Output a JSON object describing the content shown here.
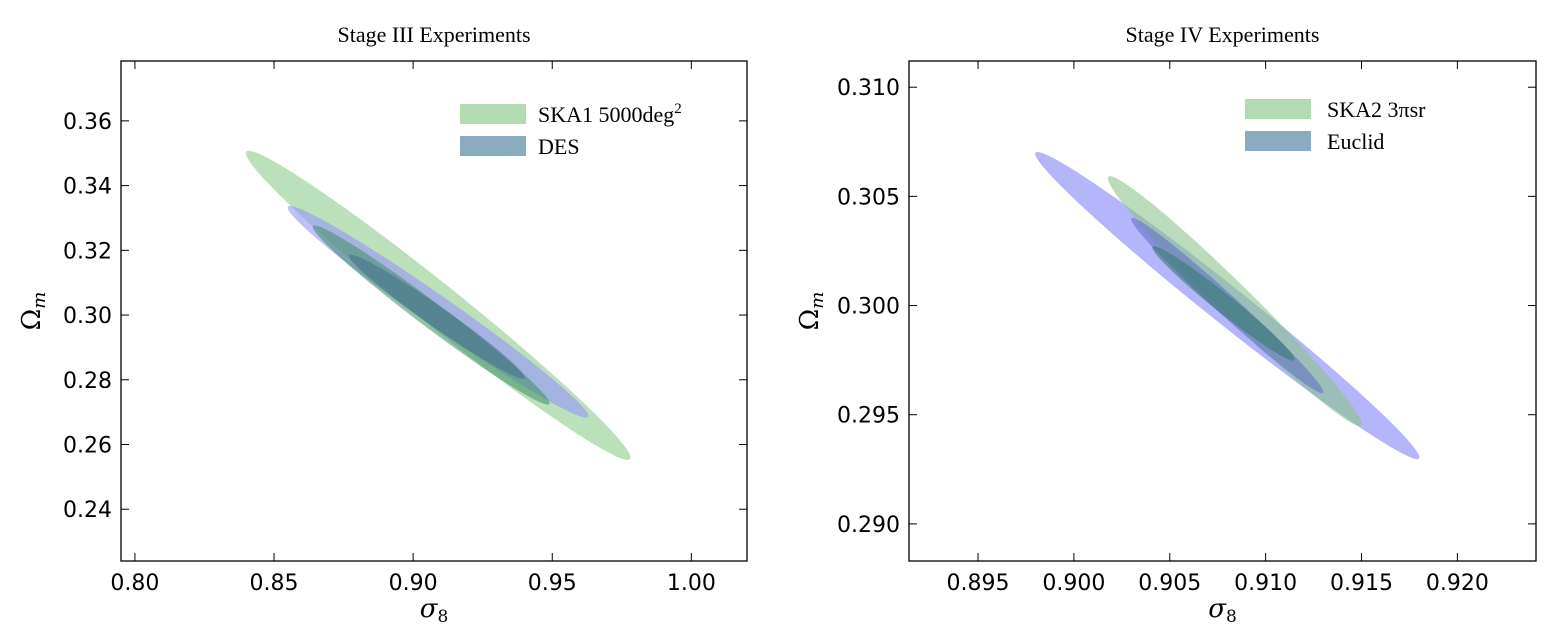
{
  "chart_data": [
    {
      "type": "contour",
      "title": "Stage III Experiments",
      "xlabel": "σ",
      "xlabel_sub": "8",
      "ylabel": "Ω",
      "ylabel_sub": "m",
      "xlim": [
        0.795,
        1.02
      ],
      "ylim": [
        0.224,
        0.3785
      ],
      "x_ticks": [
        0.8,
        0.85,
        0.9,
        0.95,
        1.0
      ],
      "x_tick_labels": [
        "0.80",
        "0.85",
        "0.90",
        "0.95",
        "1.00"
      ],
      "y_ticks": [
        0.24,
        0.26,
        0.28,
        0.3,
        0.32,
        0.34,
        0.36
      ],
      "y_tick_labels": [
        "0.24",
        "0.26",
        "0.28",
        "0.30",
        "0.32",
        "0.34",
        "0.36"
      ],
      "legend_position": "top-right",
      "legend": [
        {
          "label": "SKA1 5000deg",
          "sup": "2",
          "color": "#b2dbb2"
        },
        {
          "label": "DES",
          "color": "#8aaabf"
        }
      ],
      "contours": [
        {
          "name": "SKA1 2σ",
          "center": [
            0.909,
            0.303
          ],
          "endpoint": [
            0.978,
            0.2555
          ],
          "semi_minor": 0.0065,
          "color": "#a8d8a8",
          "opacity": 0.78
        },
        {
          "name": "DES 2σ",
          "center": [
            0.909,
            0.301
          ],
          "endpoint": [
            0.963,
            0.2685
          ],
          "semi_minor": 0.0047,
          "color": "#9595f8",
          "opacity": 0.6
        },
        {
          "name": "SKA1 1σ",
          "center": [
            0.9065,
            0.3
          ],
          "endpoint": [
            0.949,
            0.2725
          ],
          "semi_minor": 0.0039,
          "color": "#3f8f65",
          "opacity": 0.55
        },
        {
          "name": "DES 1σ",
          "center": [
            0.9085,
            0.2995
          ],
          "endpoint": [
            0.94,
            0.2805
          ],
          "semi_minor": 0.0032,
          "color": "#3b6a86",
          "opacity": 0.5
        }
      ]
    },
    {
      "type": "contour",
      "title": "Stage IV Experiments",
      "xlabel": "σ",
      "xlabel_sub": "8",
      "ylabel": "Ω",
      "ylabel_sub": "m",
      "xlim": [
        0.8914,
        0.9241
      ],
      "ylim": [
        0.2883,
        0.3112
      ],
      "x_ticks": [
        0.895,
        0.9,
        0.905,
        0.91,
        0.915,
        0.92
      ],
      "x_tick_labels": [
        "0.895",
        "0.900",
        "0.905",
        "0.910",
        "0.915",
        "0.920"
      ],
      "y_ticks": [
        0.29,
        0.295,
        0.3,
        0.305,
        0.31
      ],
      "y_tick_labels": [
        "0.290",
        "0.295",
        "0.300",
        "0.305",
        "0.310"
      ],
      "legend_position": "top-right",
      "legend": [
        {
          "label": "SKA2 3πsr",
          "color": "#b2dbb2"
        },
        {
          "label": "Euclid",
          "color": "#8aaabf"
        }
      ],
      "contours": [
        {
          "name": "Euclid 2σ",
          "center": [
            0.908,
            0.3
          ],
          "endpoint": [
            0.918,
            0.293
          ],
          "semi_minor": 0.00085,
          "color": "#a3a3fb",
          "opacity": 0.8
        },
        {
          "name": "SKA2 2σ",
          "center": [
            0.9084,
            0.3002
          ],
          "endpoint": [
            0.915,
            0.2945
          ],
          "semi_minor": 0.00075,
          "color": "#8cc48c",
          "opacity": 0.6
        },
        {
          "name": "Euclid 1σ",
          "center": [
            0.908,
            0.3
          ],
          "endpoint": [
            0.913,
            0.296
          ],
          "semi_minor": 0.00048,
          "color": "#5c6cc4",
          "opacity": 0.55
        },
        {
          "name": "SKA2 1σ",
          "center": [
            0.9078,
            0.3001
          ],
          "endpoint": [
            0.9115,
            0.2975
          ],
          "semi_minor": 0.00043,
          "color": "#2f7a66",
          "opacity": 0.55
        }
      ]
    }
  ]
}
